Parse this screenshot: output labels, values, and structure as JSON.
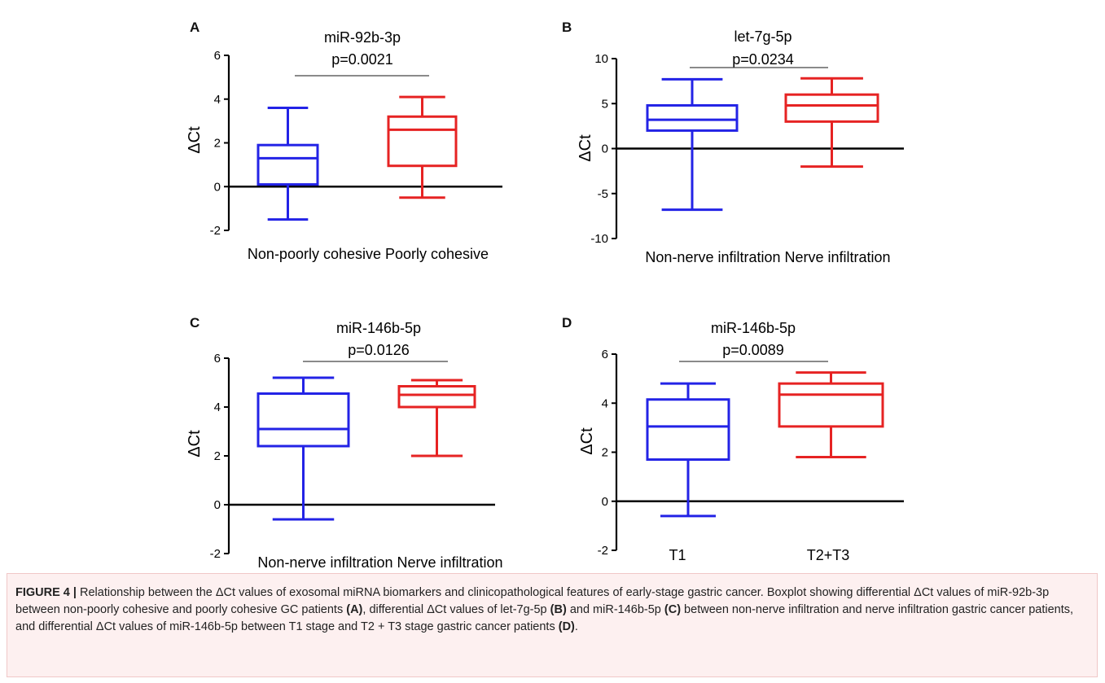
{
  "chart_data": [
    {
      "type": "box",
      "panel": "A",
      "title": "miR-92b-3p",
      "pvalue": "p=0.0021",
      "ylabel": "ΔCt",
      "ylim": [
        -2,
        6
      ],
      "yticks": [
        "-2",
        "0",
        "2",
        "4",
        "6"
      ],
      "yticks_v": [
        -2,
        0,
        2,
        4,
        6
      ],
      "xlabel_text": "Non-poorly cohesive Poorly cohesive",
      "series": [
        {
          "color": "#2323e6",
          "min": -1.5,
          "q1": 0.1,
          "median": 1.3,
          "q3": 1.9,
          "max": 3.6
        },
        {
          "color": "#e62323",
          "min": -0.5,
          "q1": 0.95,
          "median": 2.6,
          "q3": 3.2,
          "max": 4.1
        }
      ]
    },
    {
      "type": "box",
      "panel": "B",
      "title": "let-7g-5p",
      "pvalue": "p=0.0234",
      "ylabel": "ΔCt",
      "ylim": [
        -10,
        10
      ],
      "yticks": [
        "-10",
        "-5",
        "0",
        "5",
        "10"
      ],
      "yticks_v": [
        -10,
        -5,
        0,
        5,
        10
      ],
      "xlabel_text": "Non-nerve infiltration  Nerve infiltration",
      "series": [
        {
          "color": "#2323e6",
          "min": -6.8,
          "q1": 2.0,
          "median": 3.2,
          "q3": 4.8,
          "max": 7.7
        },
        {
          "color": "#e62323",
          "min": -2.0,
          "q1": 3.0,
          "median": 4.8,
          "q3": 6.0,
          "max": 7.8
        }
      ]
    },
    {
      "type": "box",
      "panel": "C",
      "title": "miR-146b-5p",
      "pvalue": "p=0.0126",
      "ylabel": "ΔCt",
      "ylim": [
        -2,
        6
      ],
      "yticks": [
        "-2",
        "0",
        "2",
        "4",
        "6"
      ],
      "yticks_v": [
        -2,
        0,
        2,
        4,
        6
      ],
      "xlabel_text": "Non-nerve infiltration Nerve infiltration",
      "series": [
        {
          "color": "#2323e6",
          "min": -0.6,
          "q1": 2.4,
          "median": 3.1,
          "q3": 4.55,
          "max": 5.2
        },
        {
          "color": "#e62323",
          "min": 2.0,
          "q1": 4.0,
          "median": 4.5,
          "q3": 4.85,
          "max": 5.1
        }
      ]
    },
    {
      "type": "box",
      "panel": "D",
      "title": "miR-146b-5p",
      "pvalue": "p=0.0089",
      "ylabel": "ΔCt",
      "ylim": [
        -2,
        6
      ],
      "yticks": [
        "-2",
        "0",
        "2",
        "4",
        "6"
      ],
      "yticks_v": [
        -2,
        0,
        2,
        4,
        6
      ],
      "categories": [
        "T1",
        "T2+T3"
      ],
      "series": [
        {
          "color": "#2323e6",
          "min": -0.6,
          "q1": 1.7,
          "median": 3.05,
          "q3": 4.15,
          "max": 4.8
        },
        {
          "color": "#e62323",
          "min": 1.8,
          "q1": 3.05,
          "median": 4.35,
          "q3": 4.8,
          "max": 5.25
        }
      ]
    }
  ],
  "caption": {
    "figure_label": "FIGURE 4 |",
    "parts": [
      {
        "text": " Relationship between the ΔCt values of exosomal miRNA biomarkers and clinicopathological features of early-stage gastric cancer. Boxplot showing differential ΔCt values of miR-92b-3p between non-poorly cohesive and poorly cohesive GC patients ",
        "bold": false
      },
      {
        "text": "(A)",
        "bold": true
      },
      {
        "text": ", differential ΔCt values of let-7g-5p ",
        "bold": false
      },
      {
        "text": "(B)",
        "bold": true
      },
      {
        "text": " and miR-146b-5p ",
        "bold": false
      },
      {
        "text": "(C)",
        "bold": true
      },
      {
        "text": " between non-nerve infiltration and nerve infiltration gastric cancer patients, and differential ΔCt values of miR-146b-5p between T1 stage and T2 + T3 stage gastric cancer patients ",
        "bold": false
      },
      {
        "text": "(D)",
        "bold": true
      },
      {
        "text": ".",
        "bold": false
      }
    ]
  }
}
